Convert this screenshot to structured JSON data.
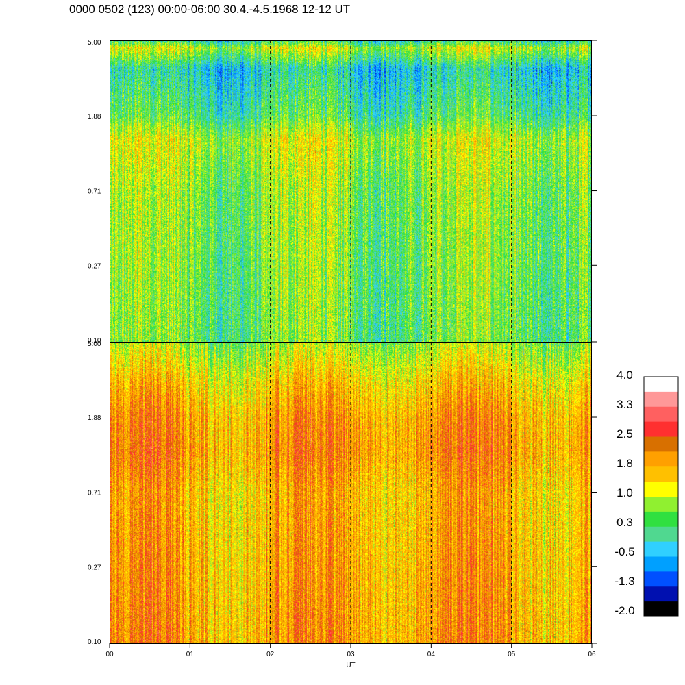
{
  "header": {
    "title": "0000 0502 (123) 00:00-06:00 30.4.-4.5.1968  12-12 UT"
  },
  "chart_data": {
    "type": "heatmap",
    "title": "0000 0502 (123) 00:00-06:00 30.4.-4.5.1968  12-12 UT",
    "xlabel": "UT",
    "x_ticks": [
      "00",
      "01",
      "02",
      "03",
      "04",
      "05",
      "06"
    ],
    "xlim": [
      0,
      6
    ],
    "dashed_verticals_at": [
      1,
      2,
      3,
      4,
      5
    ],
    "y_scale": "log",
    "panels": [
      {
        "name": "upper",
        "y_ticks": [
          "5.00",
          "1.88",
          "0.71",
          "0.27",
          "0.10"
        ],
        "ylim": [
          0.1,
          5.0
        ],
        "value_profile": [
          {
            "y": 0.1,
            "v": 0.5
          },
          {
            "y": 0.27,
            "v": 0.6
          },
          {
            "y": 0.71,
            "v": 0.7
          },
          {
            "y": 1.4,
            "v": 1.0
          },
          {
            "y": 1.88,
            "v": 0.3
          },
          {
            "y": 3.5,
            "v": -0.2
          },
          {
            "y": 4.6,
            "v": 1.0
          },
          {
            "y": 5.0,
            "v": 0.1
          }
        ]
      },
      {
        "name": "lower",
        "y_ticks": [
          "5.00",
          "1.88",
          "0.71",
          "0.27",
          "0.10"
        ],
        "ylim": [
          0.1,
          5.0
        ],
        "value_profile": [
          {
            "y": 0.1,
            "v": 1.9
          },
          {
            "y": 0.27,
            "v": 1.8
          },
          {
            "y": 0.71,
            "v": 1.7
          },
          {
            "y": 1.2,
            "v": 2.0
          },
          {
            "y": 1.88,
            "v": 1.9
          },
          {
            "y": 3.0,
            "v": 1.5
          },
          {
            "y": 5.0,
            "v": 0.8
          }
        ]
      }
    ],
    "colorbar": {
      "labels": [
        "4.0",
        "3.3",
        "2.5",
        "1.8",
        "1.0",
        "0.3",
        "-0.5",
        "-1.3",
        "-2.0"
      ],
      "range": [
        -2.0,
        4.0
      ],
      "colors": [
        "#000000",
        "#0010b0",
        "#0050ff",
        "#00a0ff",
        "#30d0ff",
        "#50d890",
        "#30e040",
        "#90f030",
        "#ffff00",
        "#ffc000",
        "#ffa000",
        "#d87000",
        "#ff3030",
        "#ff6060",
        "#ff9898",
        "#ffffff"
      ]
    }
  }
}
